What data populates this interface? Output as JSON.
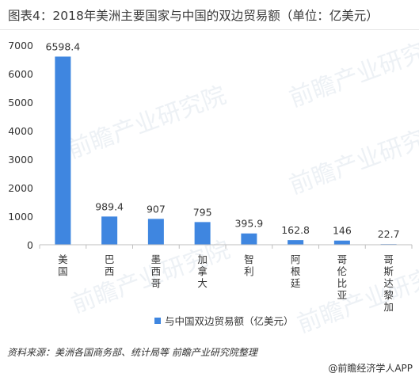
{
  "title": "图表4：2018年美洲主要国家与中国的双边贸易额（单位：亿美元）",
  "source": "资料来源：美洲各国商务部、统计局等 前瞻产业研究院整理",
  "credit": "@前瞻经济学人APP",
  "watermark": "前瞻产业研究院",
  "colors": {
    "bar": "#3f86e0",
    "axis": "#bfbfbf",
    "text": "#333333"
  },
  "chart_data": {
    "type": "bar",
    "categories": [
      "美国",
      "巴西",
      "墨西哥",
      "加拿大",
      "智利",
      "阿根廷",
      "哥伦比亚",
      "哥斯达黎加"
    ],
    "series": [
      {
        "name": "与中国双边贸易额（亿美元）",
        "values": [
          6598.4,
          989.4,
          907,
          795,
          395.9,
          162.8,
          146,
          22.7
        ]
      }
    ],
    "value_labels": [
      "6598.4",
      "989.4",
      "907",
      "795",
      "395.9",
      "162.8",
      "146",
      "22.7"
    ],
    "ylim": [
      0,
      7000
    ],
    "yticks": [
      0,
      1000,
      2000,
      3000,
      4000,
      5000,
      6000,
      7000
    ],
    "grid": false,
    "legend_position": "bottom"
  }
}
